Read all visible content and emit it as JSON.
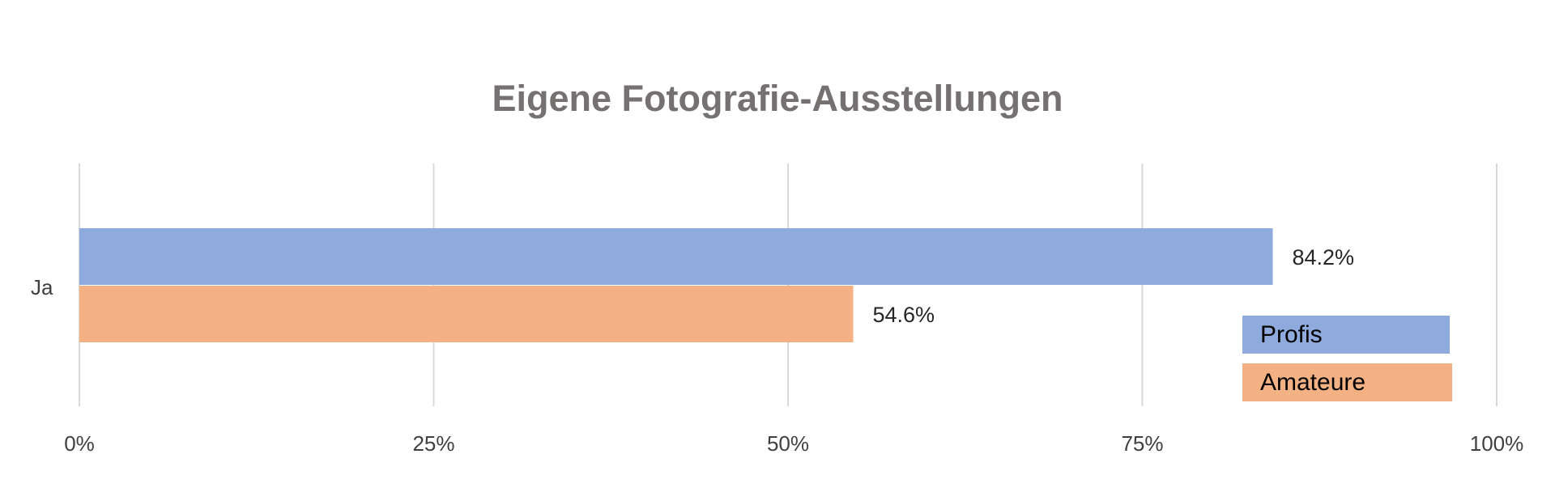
{
  "chart_data": {
    "type": "bar",
    "orientation": "horizontal",
    "title": "Eigene Fotografie-Ausstellungen",
    "categories": [
      "Ja"
    ],
    "series": [
      {
        "name": "Profis",
        "values": [
          84.2
        ],
        "labels": [
          "84.2%"
        ],
        "color": "#8FAADC"
      },
      {
        "name": "Amateure",
        "values": [
          54.6
        ],
        "labels": [
          "54.6%"
        ],
        "color": "#F4B183"
      }
    ],
    "xlim": [
      0,
      100
    ],
    "xticks": [
      "0%",
      "25%",
      "50%",
      "75%",
      "100%"
    ],
    "grid": true,
    "legend_position": "bottom-right"
  }
}
